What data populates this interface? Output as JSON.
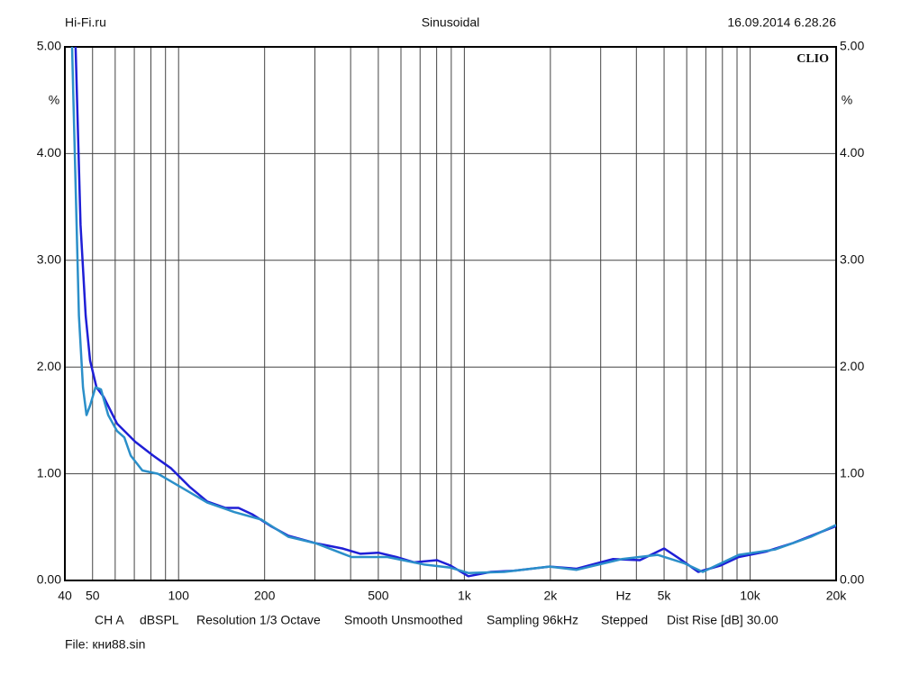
{
  "chart_data": {
    "type": "line",
    "header_left": "Hi-Fi.ru",
    "title": "Sinusoidal",
    "header_right": "16.09.2014 6.28.26",
    "brand": "CLIO",
    "y_unit": "%",
    "x_unit": "Hz",
    "settings": [
      "CH A",
      "dBSPL",
      "Resolution 1/3 Octave",
      "Smooth Unsmoothed",
      "Sampling 96kHz",
      "Stepped",
      "Dist Rise [dB] 30.00"
    ],
    "file": "File: кни88.sin",
    "log_x": true,
    "grid": true,
    "xlim": [
      40,
      20000
    ],
    "xticks": [
      40,
      50,
      100,
      200,
      500,
      {
        "value": 1000,
        "label": "1k"
      },
      {
        "value": 2000,
        "label": "2k"
      },
      {
        "value": 5000,
        "label": "5k"
      },
      {
        "value": 10000,
        "label": "10k"
      },
      {
        "value": 20000,
        "label": "20k"
      }
    ],
    "xminorticks": [
      60,
      70,
      80,
      90,
      300,
      400,
      600,
      700,
      800,
      900,
      3000,
      4000,
      6000,
      7000,
      8000,
      9000
    ],
    "ylim": [
      0,
      5
    ],
    "yticks": [
      {
        "value": 0,
        "label": "0.00"
      },
      {
        "value": 1,
        "label": "1.00"
      },
      {
        "value": 2,
        "label": "2.00"
      },
      {
        "value": 3,
        "label": "3.00"
      },
      {
        "value": 4,
        "label": "4.00"
      },
      {
        "value": 5,
        "label": "5.00"
      }
    ],
    "series": [
      {
        "color": "#1f1fd6",
        "x": [
          43.6,
          45.4,
          47.3,
          49.0,
          51.6,
          54.7,
          60.9,
          70.5,
          81.5,
          94.2,
          109,
          126,
          146,
          162,
          181,
          210,
          242,
          301,
          374,
          433,
          500,
          578,
          668,
          802,
          894,
          1033,
          1239,
          1487,
          1987,
          2472,
          3305,
          4113,
          5003,
          5691,
          6583,
          7888,
          9124,
          11353,
          14100,
          20000
        ],
        "values": [
          5.0,
          3.33,
          2.48,
          2.06,
          1.81,
          1.72,
          1.47,
          1.3,
          1.17,
          1.05,
          0.88,
          0.74,
          0.68,
          0.68,
          0.62,
          0.51,
          0.42,
          0.35,
          0.3,
          0.25,
          0.26,
          0.22,
          0.17,
          0.19,
          0.14,
          0.04,
          0.08,
          0.09,
          0.13,
          0.11,
          0.2,
          0.19,
          0.3,
          0.2,
          0.08,
          0.14,
          0.22,
          0.27,
          0.35,
          0.51
        ]
      },
      {
        "color": "#2b8fc9",
        "x": [
          42.4,
          44.8,
          46.3,
          47.6,
          49.0,
          51.2,
          53.5,
          56.7,
          60.9,
          64.6,
          68,
          74.7,
          84.6,
          101,
          126,
          157,
          195,
          242,
          301,
          403,
          538,
          720,
          894,
          1033,
          1380,
          1987,
          2472,
          3558,
          4745,
          5904,
          6830,
          9124,
          12220,
          16330,
          20000
        ],
        "values": [
          5.0,
          2.48,
          1.81,
          1.55,
          1.64,
          1.81,
          1.79,
          1.55,
          1.4,
          1.34,
          1.17,
          1.03,
          1.0,
          0.88,
          0.73,
          0.64,
          0.57,
          0.41,
          0.35,
          0.22,
          0.22,
          0.15,
          0.12,
          0.07,
          0.08,
          0.13,
          0.1,
          0.2,
          0.24,
          0.16,
          0.08,
          0.24,
          0.29,
          0.41,
          0.52
        ]
      }
    ]
  }
}
